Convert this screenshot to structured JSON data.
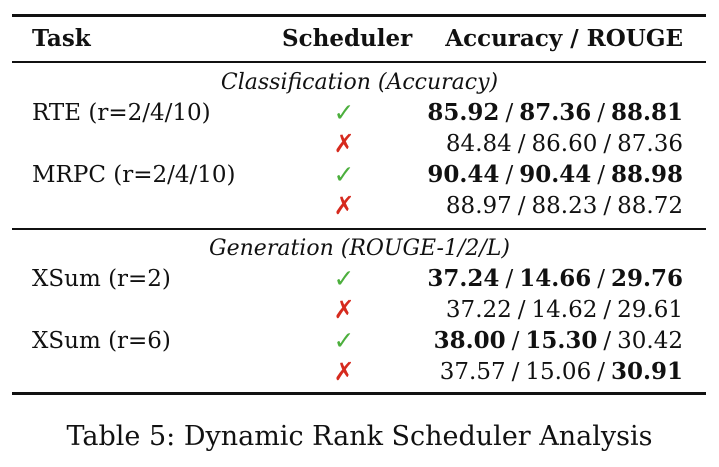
{
  "table": {
    "headers": {
      "task": "Task",
      "scheduler": "Scheduler",
      "metric": "Accuracy / ROUGE"
    },
    "sections": [
      {
        "title": "Classification (Accuracy)",
        "rows": [
          {
            "task": "RTE (r=2/4/10)",
            "scheduler": "✓",
            "values": [
              "85.92",
              "87.36",
              "88.81"
            ],
            "bold": [
              true,
              true,
              true
            ]
          },
          {
            "task": "",
            "scheduler": "✗",
            "values": [
              "84.84",
              "86.60",
              "87.36"
            ],
            "bold": [
              false,
              false,
              false
            ]
          },
          {
            "task": "MRPC (r=2/4/10)",
            "scheduler": "✓",
            "values": [
              "90.44",
              "90.44",
              "88.98"
            ],
            "bold": [
              true,
              true,
              true
            ]
          },
          {
            "task": "",
            "scheduler": "✗",
            "values": [
              "88.97",
              "88.23",
              "88.72"
            ],
            "bold": [
              false,
              false,
              false
            ]
          }
        ]
      },
      {
        "title": "Generation (ROUGE-1/2/L)",
        "rows": [
          {
            "task": "XSum (r=2)",
            "scheduler": "✓",
            "values": [
              "37.24",
              "14.66",
              "29.76"
            ],
            "bold": [
              true,
              true,
              true
            ]
          },
          {
            "task": "",
            "scheduler": "✗",
            "values": [
              "37.22",
              "14.62",
              "29.61"
            ],
            "bold": [
              false,
              false,
              false
            ]
          },
          {
            "task": "XSum (r=6)",
            "scheduler": "✓",
            "values": [
              "38.00",
              "15.30",
              "30.42"
            ],
            "bold": [
              true,
              true,
              false
            ]
          },
          {
            "task": "",
            "scheduler": "✗",
            "values": [
              "37.57",
              "15.06",
              "30.91"
            ],
            "bold": [
              false,
              false,
              true
            ]
          }
        ]
      }
    ]
  },
  "caption": "Table 5: Dynamic Rank Scheduler Analysis",
  "colors": {
    "check": "#4caf3d",
    "cross": "#d62a1e"
  }
}
